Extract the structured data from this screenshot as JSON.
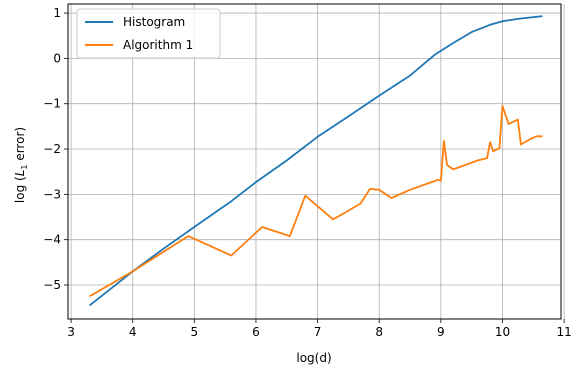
{
  "chart_data": {
    "type": "line",
    "title": "",
    "xlabel": "log(d)",
    "ylabel_prefix": "log (",
    "ylabel_var": "L",
    "ylabel_sub": "1",
    "ylabel_suffix": " error)",
    "xlim": [
      2.95,
      10.95
    ],
    "ylim": [
      -5.75,
      1.2
    ],
    "x_ticks": [
      3,
      4,
      5,
      6,
      7,
      8,
      9,
      10,
      11
    ],
    "x_tick_labels": [
      "3",
      "4",
      "5",
      "6",
      "7",
      "8",
      "9",
      "10",
      "11"
    ],
    "y_ticks": [
      -5,
      -4,
      -3,
      -2,
      -1,
      0,
      1
    ],
    "y_tick_labels": [
      "−5",
      "−4",
      "−3",
      "−2",
      "−1",
      "0",
      "1"
    ],
    "grid": true,
    "legend_position": "top-left",
    "series": [
      {
        "name": "Histogram",
        "color": "#1f77b4",
        "x": [
          3.3,
          4.0,
          4.5,
          5.0,
          5.6,
          6.0,
          6.5,
          7.0,
          7.5,
          8.0,
          8.5,
          8.9,
          9.2,
          9.5,
          9.8,
          10.0,
          10.3,
          10.65
        ],
        "y": [
          -5.45,
          -4.7,
          -4.2,
          -3.72,
          -3.15,
          -2.73,
          -2.25,
          -1.73,
          -1.28,
          -0.82,
          -0.38,
          0.08,
          0.34,
          0.58,
          0.74,
          0.82,
          0.88,
          0.93
        ]
      },
      {
        "name": "Algorithm 1",
        "color": "#ff7f0e",
        "x": [
          3.3,
          4.0,
          4.9,
          5.6,
          6.1,
          6.55,
          6.8,
          7.25,
          7.45,
          7.7,
          7.85,
          8.0,
          8.2,
          8.5,
          8.95,
          9.0,
          9.05,
          9.1,
          9.2,
          9.4,
          9.6,
          9.75,
          9.8,
          9.85,
          9.95,
          10.0,
          10.1,
          10.25,
          10.3,
          10.45,
          10.55,
          10.65
        ],
        "y": [
          -5.25,
          -4.7,
          -3.92,
          -4.35,
          -3.72,
          -3.92,
          -3.03,
          -3.55,
          -3.4,
          -3.2,
          -2.88,
          -2.9,
          -3.08,
          -2.9,
          -2.68,
          -2.7,
          -1.82,
          -2.35,
          -2.45,
          -2.35,
          -2.25,
          -2.2,
          -1.85,
          -2.05,
          -1.98,
          -1.05,
          -1.45,
          -1.35,
          -1.9,
          -1.78,
          -1.72,
          -1.72
        ]
      }
    ]
  }
}
